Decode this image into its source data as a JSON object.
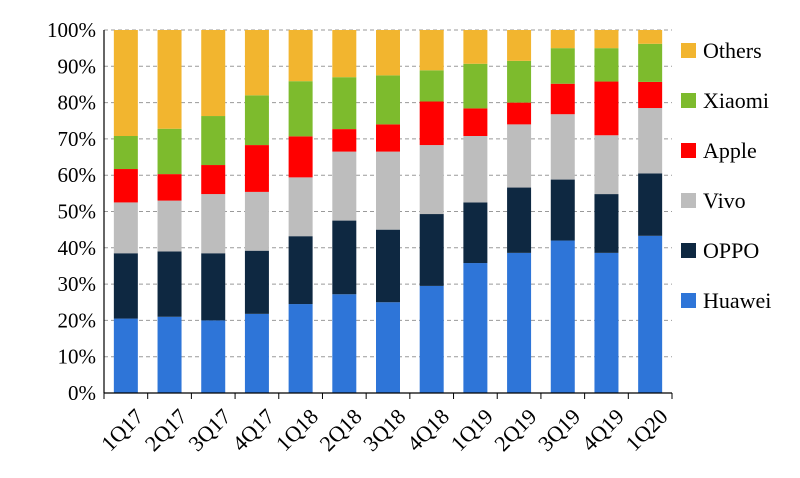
{
  "chart_data": {
    "type": "bar",
    "stacked": true,
    "title": "",
    "xlabel": "",
    "ylabel": "",
    "ylim": [
      0,
      100
    ],
    "yticks": [
      0,
      10,
      20,
      30,
      40,
      50,
      60,
      70,
      80,
      90,
      100
    ],
    "ytick_labels": [
      "0%",
      "10%",
      "20%",
      "30%",
      "40%",
      "50%",
      "60%",
      "70%",
      "80%",
      "90%",
      "100%"
    ],
    "grid": "horizontal-dashed",
    "legend_position": "right",
    "categories": [
      "1Q17",
      "2Q17",
      "3Q17",
      "4Q17",
      "1Q18",
      "2Q18",
      "3Q18",
      "4Q18",
      "1Q19",
      "2Q19",
      "3Q19",
      "4Q19",
      "1Q20"
    ],
    "series": [
      {
        "name": "Huawei",
        "color": "#2E75D8",
        "values": [
          20.5,
          21,
          20,
          21.8,
          24.5,
          27.2,
          25,
          29.5,
          35.8,
          38.6,
          42,
          38.6,
          43.3
        ]
      },
      {
        "name": "OPPO",
        "color": "#0E2841",
        "values": [
          18,
          18,
          18.5,
          17.4,
          18.7,
          20.3,
          20,
          19.8,
          16.7,
          18,
          16.8,
          16.2,
          17.2
        ]
      },
      {
        "name": "Vivo",
        "color": "#BDBDBD",
        "values": [
          14,
          14,
          16.3,
          16.2,
          16.2,
          19,
          21.5,
          19,
          18.3,
          17.4,
          18,
          16.2,
          18
        ]
      },
      {
        "name": "Apple",
        "color": "#FF0000",
        "values": [
          9.2,
          7.3,
          8,
          12.9,
          11.3,
          6.2,
          7.5,
          12,
          7.6,
          6,
          8.4,
          14.8,
          7.2
        ]
      },
      {
        "name": "Xiaomi",
        "color": "#7DBB2D",
        "values": [
          9.1,
          12.5,
          13.5,
          13.7,
          15.2,
          14.3,
          13.5,
          8.6,
          12.3,
          11.5,
          9.8,
          9.2,
          10.5
        ]
      },
      {
        "name": "Others",
        "color": "#F2B52F",
        "values": [
          29.2,
          27.2,
          23.7,
          18,
          14.1,
          13,
          12.5,
          11.1,
          9.3,
          8.5,
          5,
          5,
          3.8
        ]
      }
    ]
  }
}
